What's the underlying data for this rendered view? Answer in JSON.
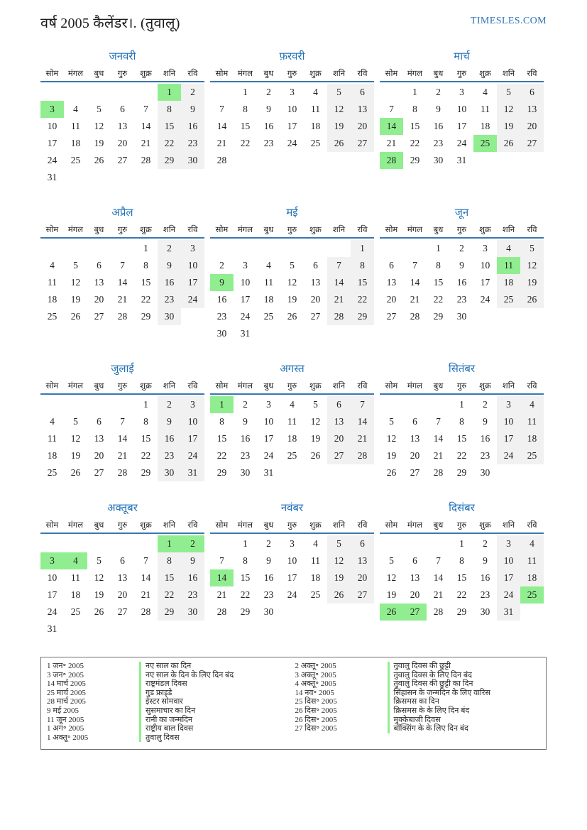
{
  "header": {
    "title": "वर्ष 2005 कैलेंडर।. (तुवालू)",
    "site": "TIMESLES.COM"
  },
  "weekdays": [
    "सोम",
    "मंगल",
    "बुध",
    "गुरु",
    "शुक्र",
    "शनि",
    "रवि"
  ],
  "months": [
    {
      "name": "जनवरी",
      "highlights": [
        1,
        3
      ],
      "weeks": [
        [
          null,
          null,
          null,
          null,
          null,
          1,
          2
        ],
        [
          3,
          4,
          5,
          6,
          7,
          8,
          9
        ],
        [
          10,
          11,
          12,
          13,
          14,
          15,
          16
        ],
        [
          17,
          18,
          19,
          20,
          21,
          22,
          23
        ],
        [
          24,
          25,
          26,
          27,
          28,
          29,
          30
        ],
        [
          31,
          null,
          null,
          null,
          null,
          null,
          null
        ]
      ]
    },
    {
      "name": "फ़रवरी",
      "highlights": [],
      "weeks": [
        [
          null,
          1,
          2,
          3,
          4,
          5,
          6
        ],
        [
          7,
          8,
          9,
          10,
          11,
          12,
          13
        ],
        [
          14,
          15,
          16,
          17,
          18,
          19,
          20
        ],
        [
          21,
          22,
          23,
          24,
          25,
          26,
          27
        ],
        [
          28,
          null,
          null,
          null,
          null,
          null,
          null
        ]
      ]
    },
    {
      "name": "मार्च",
      "highlights": [
        14,
        25,
        28
      ],
      "weeks": [
        [
          null,
          1,
          2,
          3,
          4,
          5,
          6
        ],
        [
          7,
          8,
          9,
          10,
          11,
          12,
          13
        ],
        [
          14,
          15,
          16,
          17,
          18,
          19,
          20
        ],
        [
          21,
          22,
          23,
          24,
          25,
          26,
          27
        ],
        [
          28,
          29,
          30,
          31,
          null,
          null,
          null
        ]
      ]
    },
    {
      "name": "अप्रैल",
      "highlights": [],
      "weeks": [
        [
          null,
          null,
          null,
          null,
          1,
          2,
          3
        ],
        [
          4,
          5,
          6,
          7,
          8,
          9,
          10
        ],
        [
          11,
          12,
          13,
          14,
          15,
          16,
          17
        ],
        [
          18,
          19,
          20,
          21,
          22,
          23,
          24
        ],
        [
          25,
          26,
          27,
          28,
          29,
          30,
          null
        ]
      ]
    },
    {
      "name": "मई",
      "highlights": [
        9
      ],
      "weeks": [
        [
          null,
          null,
          null,
          null,
          null,
          null,
          1
        ],
        [
          2,
          3,
          4,
          5,
          6,
          7,
          8
        ],
        [
          9,
          10,
          11,
          12,
          13,
          14,
          15
        ],
        [
          16,
          17,
          18,
          19,
          20,
          21,
          22
        ],
        [
          23,
          24,
          25,
          26,
          27,
          28,
          29
        ],
        [
          30,
          31,
          null,
          null,
          null,
          null,
          null
        ]
      ]
    },
    {
      "name": "जून",
      "highlights": [
        11
      ],
      "weeks": [
        [
          null,
          null,
          1,
          2,
          3,
          4,
          5
        ],
        [
          6,
          7,
          8,
          9,
          10,
          11,
          12
        ],
        [
          13,
          14,
          15,
          16,
          17,
          18,
          19
        ],
        [
          20,
          21,
          22,
          23,
          24,
          25,
          26
        ],
        [
          27,
          28,
          29,
          30,
          null,
          null,
          null
        ]
      ]
    },
    {
      "name": "जुलाई",
      "highlights": [],
      "weeks": [
        [
          null,
          null,
          null,
          null,
          1,
          2,
          3
        ],
        [
          4,
          5,
          6,
          7,
          8,
          9,
          10
        ],
        [
          11,
          12,
          13,
          14,
          15,
          16,
          17
        ],
        [
          18,
          19,
          20,
          21,
          22,
          23,
          24
        ],
        [
          25,
          26,
          27,
          28,
          29,
          30,
          31
        ]
      ]
    },
    {
      "name": "अगस्त",
      "highlights": [
        1
      ],
      "weeks": [
        [
          1,
          2,
          3,
          4,
          5,
          6,
          7
        ],
        [
          8,
          9,
          10,
          11,
          12,
          13,
          14
        ],
        [
          15,
          16,
          17,
          18,
          19,
          20,
          21
        ],
        [
          22,
          23,
          24,
          25,
          26,
          27,
          28
        ],
        [
          29,
          30,
          31,
          null,
          null,
          null,
          null
        ]
      ]
    },
    {
      "name": "सितंबर",
      "highlights": [],
      "weeks": [
        [
          null,
          null,
          null,
          1,
          2,
          3,
          4
        ],
        [
          5,
          6,
          7,
          8,
          9,
          10,
          11
        ],
        [
          12,
          13,
          14,
          15,
          16,
          17,
          18
        ],
        [
          19,
          20,
          21,
          22,
          23,
          24,
          25
        ],
        [
          26,
          27,
          28,
          29,
          30,
          null,
          null
        ]
      ]
    },
    {
      "name": "अक्तूबर",
      "highlights": [
        1,
        2,
        3,
        4
      ],
      "weeks": [
        [
          null,
          null,
          null,
          null,
          null,
          1,
          2
        ],
        [
          3,
          4,
          5,
          6,
          7,
          8,
          9
        ],
        [
          10,
          11,
          12,
          13,
          14,
          15,
          16
        ],
        [
          17,
          18,
          19,
          20,
          21,
          22,
          23
        ],
        [
          24,
          25,
          26,
          27,
          28,
          29,
          30
        ],
        [
          31,
          null,
          null,
          null,
          null,
          null,
          null
        ]
      ]
    },
    {
      "name": "नवंबर",
      "highlights": [
        14
      ],
      "weeks": [
        [
          null,
          1,
          2,
          3,
          4,
          5,
          6
        ],
        [
          7,
          8,
          9,
          10,
          11,
          12,
          13
        ],
        [
          14,
          15,
          16,
          17,
          18,
          19,
          20
        ],
        [
          21,
          22,
          23,
          24,
          25,
          26,
          27
        ],
        [
          28,
          29,
          30,
          null,
          null,
          null,
          null
        ]
      ]
    },
    {
      "name": "दिसंबर",
      "highlights": [
        25,
        26,
        27
      ],
      "weeks": [
        [
          null,
          null,
          null,
          1,
          2,
          3,
          4
        ],
        [
          5,
          6,
          7,
          8,
          9,
          10,
          11
        ],
        [
          12,
          13,
          14,
          15,
          16,
          17,
          18
        ],
        [
          19,
          20,
          21,
          22,
          23,
          24,
          25
        ],
        [
          26,
          27,
          28,
          29,
          30,
          31,
          null
        ]
      ]
    }
  ],
  "legend": {
    "left": [
      {
        "date": "1 जन॰ 2005",
        "desc": "नए साल का दिन"
      },
      {
        "date": "3 जन॰ 2005",
        "desc": "नए साल के दिन के लिए दिन बंद"
      },
      {
        "date": "14 मार्च 2005",
        "desc": "राष्ट्रमंडल दिवस"
      },
      {
        "date": "25 मार्च 2005",
        "desc": "गुड फ्राइडे"
      },
      {
        "date": "28 मार्च 2005",
        "desc": "ईस्टर सोमवार"
      },
      {
        "date": "9 मई 2005",
        "desc": "सुसमाचार का दिन"
      },
      {
        "date": "11 जून 2005",
        "desc": "रानी का जन्मदिन"
      },
      {
        "date": "1 अग॰ 2005",
        "desc": "राष्ट्रीय बाल दिवस"
      },
      {
        "date": "1 अक्तू॰ 2005",
        "desc": "तुवालु दिवस"
      }
    ],
    "right": [
      {
        "date": "2 अक्तू॰ 2005",
        "desc": "तुवालु दिवस की छुट्टी"
      },
      {
        "date": "3 अक्तू॰ 2005",
        "desc": "तुवालु दिवस के लिए दिन बंद"
      },
      {
        "date": "4 अक्तू॰ 2005",
        "desc": "तुवालु दिवस की छुट्टी का दिन"
      },
      {
        "date": "14 नव॰ 2005",
        "desc": "सिंहासन के जन्मदिन के लिए वारिस"
      },
      {
        "date": "25 दिस॰ 2005",
        "desc": "क्रिसमस का दिन"
      },
      {
        "date": "26 दिस॰ 2005",
        "desc": "क्रिसमस के के लिए दिन बंद"
      },
      {
        "date": "26 दिस॰ 2005",
        "desc": "मुक्केबाजी दिवस"
      },
      {
        "date": "27 दिस॰ 2005",
        "desc": "बॉक्सिंग के के लिए दिन बंद"
      }
    ]
  },
  "colors": {
    "accent_blue": "#2272b8",
    "header_rule_blue": "#3b76b0",
    "weekend_bg": "#f1f1f1",
    "holiday_green": "#90ee90"
  }
}
